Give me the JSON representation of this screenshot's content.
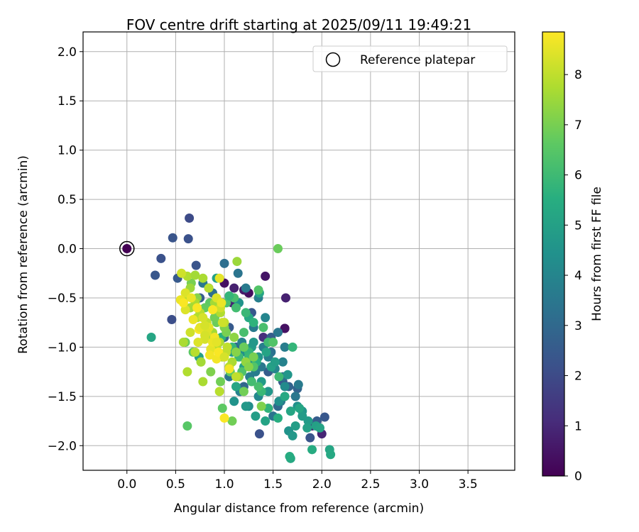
{
  "chart_data": {
    "type": "scatter",
    "title": "FOV centre drift starting at 2025/09/11 19:49:21",
    "xlabel": "Angular distance from reference (arcmin)",
    "ylabel": "Rotation from reference (arcmin)",
    "xlim": [
      -0.45,
      3.98
    ],
    "ylim": [
      -2.25,
      2.2
    ],
    "x_ticks": [
      0.0,
      0.5,
      1.0,
      1.5,
      2.0,
      2.5,
      3.0,
      3.5
    ],
    "x_tick_labels": [
      "0.0",
      "0.5",
      "1.0",
      "1.5",
      "2.0",
      "2.5",
      "3.0",
      "3.5"
    ],
    "y_ticks": [
      2.0,
      1.5,
      1.0,
      0.5,
      0.0,
      -0.5,
      -1.0,
      -1.5,
      -2.0
    ],
    "y_tick_labels": [
      "2.0",
      "1.5",
      "1.0",
      "0.5",
      "0.0",
      "−0.5",
      "−1.0",
      "−1.5",
      "−2.0"
    ],
    "grid": true,
    "legend": {
      "position": "top-right",
      "label": "Reference platepar",
      "marker": "open-circle"
    },
    "reference_point": {
      "x": 0.0,
      "y": 0.0,
      "c": 0.0
    },
    "colorbar": {
      "label": "Hours from first FF file",
      "colormap": "viridis",
      "range": [
        0,
        8.85
      ],
      "ticks": [
        0,
        1,
        2,
        3,
        4,
        5,
        6,
        7,
        8
      ],
      "tick_labels": [
        "0",
        "1",
        "2",
        "3",
        "4",
        "5",
        "6",
        "7",
        "8"
      ]
    },
    "series": [
      {
        "x": [
          1.62,
          1.62,
          1.63,
          1.42,
          1.25,
          1.08,
          1.2,
          2.0,
          1.9,
          1.4,
          1.0,
          1.1,
          0.64,
          0.63,
          0.47,
          0.46,
          0.35,
          0.29,
          0.71,
          0.52,
          0.75,
          0.9,
          1.0,
          1.12,
          1.3,
          1.45,
          1.6,
          1.75,
          1.88,
          2.03,
          1.95,
          1.36,
          1.2,
          1.05,
          0.93,
          0.84,
          1.55,
          1.66,
          1.48,
          1.28,
          1.0,
          1.14,
          1.22,
          1.35,
          1.42,
          1.55,
          1.62,
          1.6,
          1.48,
          1.38,
          1.26,
          1.16,
          1.05,
          1.3,
          1.4,
          1.52,
          1.62,
          1.73,
          1.76,
          1.6,
          1.45,
          1.35,
          1.25,
          1.5,
          1.58,
          1.32,
          1.18,
          0.98,
          0.88,
          0.78,
          1.75,
          1.8,
          1.86,
          1.94,
          1.98,
          1.66,
          1.7,
          1.73,
          1.68,
          1.56,
          1.45,
          1.38,
          1.48,
          1.35,
          1.28,
          1.2,
          1.12,
          1.1,
          1.22,
          1.32,
          1.42,
          1.62,
          1.8,
          1.85,
          1.77,
          1.65,
          1.52,
          1.43,
          1.3,
          1.25,
          1.15,
          1.05,
          0.92,
          1.36,
          1.18,
          1.28,
          1.08,
          0.74,
          0.25,
          2.08,
          2.09,
          1.9,
          1.68,
          1.67,
          1.55,
          1.45,
          1.38,
          1.28,
          1.18,
          1.33,
          1.25,
          1.45,
          1.4,
          1.3,
          1.22,
          1.12,
          1.02,
          0.97,
          1.08,
          1.15,
          1.2,
          1.5,
          1.7,
          1.56,
          1.35,
          1.3,
          1.25,
          1.1,
          1.35,
          1.05,
          0.95,
          0.85,
          0.92,
          1.02,
          1.12,
          1.22,
          1.06,
          0.96,
          0.86,
          0.76,
          0.68,
          0.6,
          0.66,
          0.72,
          0.8,
          0.9,
          1.0,
          1.1,
          1.2,
          1.3,
          1.25,
          1.15,
          1.2,
          1.38,
          0.98,
          1.08,
          0.62,
          1.55,
          0.65,
          0.7,
          0.75,
          0.82,
          0.88,
          0.95,
          1.02,
          1.08,
          0.6,
          0.65,
          0.72,
          0.8,
          0.86,
          0.92,
          0.98,
          1.05,
          1.12,
          0.78,
          0.84,
          0.9,
          0.96,
          1.0,
          0.58,
          0.7,
          0.76,
          0.62,
          1.13,
          0.78,
          0.95,
          1.03,
          0.62,
          0.7,
          0.56,
          0.6,
          0.66,
          0.72,
          0.78,
          0.84,
          0.9,
          0.96,
          0.6,
          0.68,
          0.74,
          0.8,
          0.86,
          0.92,
          0.98,
          0.82,
          0.88,
          0.94,
          1.0,
          0.75,
          0.85,
          0.92,
          0.97,
          0.88,
          0.8,
          0.92,
          1.05,
          1.0,
          0.65,
          0.73,
          0.55,
          0.58,
          0.95,
          0.8
        ],
        "y": [
          -0.81,
          -0.81,
          -0.5,
          -0.28,
          -0.45,
          -0.55,
          -0.42,
          -1.88,
          -1.8,
          -0.9,
          -0.35,
          -0.4,
          0.31,
          0.1,
          0.11,
          -0.72,
          -0.1,
          -0.27,
          -0.17,
          -0.3,
          -0.5,
          -0.7,
          -0.9,
          -1.0,
          -1.15,
          -1.25,
          -1.35,
          -1.42,
          -1.92,
          -1.71,
          -1.75,
          -1.88,
          -1.4,
          -0.8,
          -0.6,
          -0.4,
          -1.6,
          -1.4,
          -0.9,
          -0.65,
          -0.15,
          -0.25,
          -0.4,
          -0.5,
          -0.7,
          -0.85,
          -1.0,
          -1.15,
          -1.05,
          -1.2,
          -1.3,
          -1.45,
          -1.3,
          -0.8,
          -1.0,
          -1.22,
          -1.4,
          -1.5,
          -1.38,
          -1.3,
          -1.1,
          -1.5,
          -1.6,
          -1.7,
          -1.55,
          -1.25,
          -0.95,
          -0.55,
          -0.45,
          -0.35,
          -1.6,
          -1.65,
          -1.75,
          -1.8,
          -1.82,
          -1.85,
          -1.9,
          -1.8,
          -1.65,
          -1.55,
          -1.45,
          -1.35,
          -1.2,
          -1.1,
          -1.0,
          -1.2,
          -1.4,
          -1.55,
          -1.6,
          -1.7,
          -1.75,
          -1.5,
          -1.7,
          -1.82,
          -1.62,
          -1.28,
          -1.15,
          -1.05,
          -0.95,
          -0.7,
          -0.55,
          -0.48,
          -0.3,
          -0.45,
          -1.05,
          -1.15,
          -1.05,
          -1.1,
          -0.9,
          -2.04,
          -2.09,
          -2.04,
          -2.13,
          -2.11,
          -1.72,
          -1.62,
          -1.45,
          -1.35,
          -1.25,
          -1.15,
          -1.05,
          -0.95,
          -0.8,
          -0.75,
          -0.65,
          -0.6,
          -0.55,
          -0.9,
          -1.0,
          -1.1,
          -0.85,
          -0.95,
          -1.0,
          -1.3,
          -1.4,
          -1.2,
          -1.1,
          -0.5,
          -0.42,
          -0.48,
          -0.65,
          -0.55,
          -0.75,
          -0.85,
          -1.05,
          -1.15,
          -1.25,
          -1.35,
          -1.25,
          -1.15,
          -1.05,
          -0.95,
          -0.35,
          -0.5,
          -0.6,
          -0.7,
          -0.8,
          -0.9,
          -1.0,
          -1.1,
          -1.2,
          -1.3,
          -1.45,
          -1.6,
          -1.62,
          -1.75,
          -1.8,
          0.0,
          -0.4,
          -0.55,
          -0.65,
          -0.75,
          -0.85,
          -0.95,
          -1.05,
          -1.15,
          -0.5,
          -0.6,
          -0.7,
          -0.8,
          -0.9,
          -1.0,
          -1.1,
          -1.2,
          -1.3,
          -0.3,
          -0.4,
          -0.55,
          -0.65,
          -0.75,
          -0.95,
          -1.05,
          -1.15,
          -1.25,
          -0.13,
          -1.35,
          -1.45,
          -1.0,
          -0.28,
          -0.27,
          -0.25,
          -0.45,
          -0.5,
          -0.6,
          -0.7,
          -0.8,
          -0.9,
          -0.6,
          -0.62,
          -0.72,
          -0.82,
          -0.92,
          -1.02,
          -1.12,
          -0.75,
          -0.85,
          -0.95,
          -1.05,
          -1.1,
          -0.8,
          -1.08,
          -0.5,
          -0.55,
          -0.62,
          -0.88,
          -0.95,
          -1.22,
          -1.72,
          -0.85,
          -0.95,
          -0.52,
          -0.55,
          -0.3,
          -0.78
        ],
        "c": [
          0.1,
          0.4,
          0.8,
          0.5,
          0.3,
          0.9,
          0.6,
          0.9,
          1.0,
          1.2,
          0.4,
          0.8,
          2.0,
          2.2,
          2.3,
          2.1,
          2.2,
          2.4,
          2.3,
          2.5,
          2.6,
          2.8,
          2.9,
          3.0,
          2.7,
          2.6,
          2.5,
          2.8,
          2.3,
          2.4,
          2.6,
          2.2,
          2.9,
          2.5,
          2.7,
          2.1,
          3.0,
          2.8,
          2.6,
          2.4,
          3.2,
          3.4,
          3.6,
          3.8,
          4.0,
          3.5,
          3.7,
          3.9,
          3.3,
          3.5,
          3.7,
          3.9,
          3.4,
          3.6,
          3.8,
          4.0,
          4.2,
          3.5,
          3.6,
          3.3,
          3.8,
          4.1,
          4.3,
          3.4,
          3.6,
          3.7,
          3.9,
          4.1,
          3.2,
          3.5,
          4.4,
          4.6,
          4.8,
          5.0,
          5.1,
          4.5,
          4.7,
          4.9,
          5.2,
          4.4,
          4.6,
          4.8,
          5.0,
          4.6,
          4.8,
          5.0,
          5.2,
          4.5,
          4.7,
          4.9,
          5.1,
          5.3,
          4.8,
          5.0,
          5.2,
          4.6,
          4.9,
          5.1,
          4.7,
          5.3,
          4.5,
          4.8,
          5.0,
          5.2,
          4.4,
          4.6,
          4.8,
          5.0,
          5.2,
          5.2,
          5.3,
          5.4,
          5.3,
          5.4,
          5.5,
          5.7,
          5.9,
          6.1,
          6.3,
          5.6,
          5.8,
          6.0,
          6.2,
          5.7,
          5.9,
          6.1,
          6.3,
          5.6,
          5.8,
          6.0,
          6.2,
          6.4,
          5.8,
          6.0,
          6.2,
          6.4,
          5.9,
          6.2,
          6.4,
          5.8,
          6.1,
          6.6,
          6.8,
          7.0,
          7.2,
          7.4,
          6.7,
          6.9,
          7.1,
          7.3,
          6.6,
          6.8,
          7.0,
          7.2,
          6.7,
          6.9,
          7.1,
          7.3,
          6.8,
          7.0,
          7.2,
          7.4,
          6.9,
          7.1,
          6.6,
          6.9,
          6.5,
          6.8,
          7.5,
          7.7,
          7.9,
          8.0,
          7.6,
          7.8,
          8.0,
          7.7,
          7.9,
          7.6,
          7.8,
          8.0,
          7.7,
          7.9,
          7.6,
          7.8,
          8.0,
          7.7,
          7.9,
          7.6,
          7.8,
          8.0,
          7.7,
          7.9,
          7.6,
          7.8,
          7.5,
          7.7,
          7.9,
          8.0,
          7.8,
          7.6,
          8.2,
          8.4,
          8.6,
          8.8,
          8.3,
          8.5,
          8.7,
          8.2,
          8.4,
          8.6,
          8.8,
          8.3,
          8.5,
          8.7,
          8.2,
          8.4,
          8.6,
          8.8,
          8.3,
          8.5,
          8.7,
          8.4,
          8.6,
          8.8,
          8.3,
          8.5,
          8.7,
          8.8,
          8.2,
          8.4,
          8.6,
          8.8,
          8.5,
          8.3
        ]
      }
    ]
  }
}
